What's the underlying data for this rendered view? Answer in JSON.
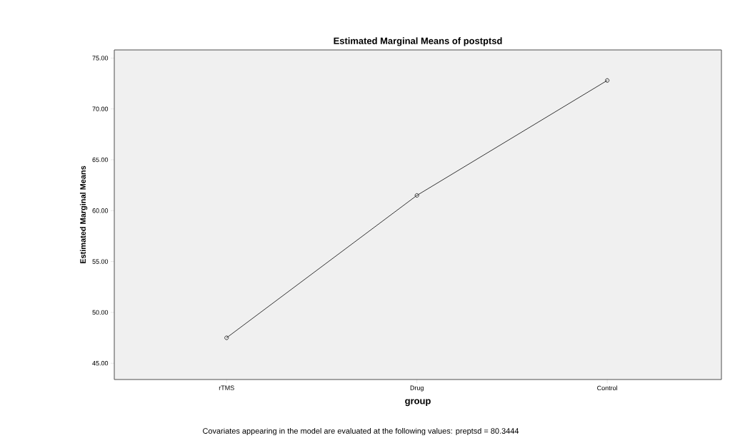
{
  "chart_data": {
    "type": "line",
    "title": "Estimated Marginal Means of postptsd",
    "xlabel": "group",
    "ylabel": "Estimated Marginal Means",
    "categories": [
      "rTMS",
      "Drug",
      "Control"
    ],
    "values": [
      47.5,
      61.5,
      72.8
    ],
    "color": "#333333",
    "marker": "circle",
    "line_style": "solid",
    "ylim": [
      43.4,
      75.8
    ],
    "yticks": [
      {
        "value": 45,
        "label": "45.00"
      },
      {
        "value": 50,
        "label": "50.00"
      },
      {
        "value": 55,
        "label": "55.00"
      },
      {
        "value": 60,
        "label": "60.00"
      },
      {
        "value": 65,
        "label": "65.00"
      },
      {
        "value": 70,
        "label": "70.00"
      },
      {
        "value": 75,
        "label": "75.00"
      }
    ],
    "annotations": [
      "Covariates appearing in the model are evaluated at the following values: preptsd = 80.3444"
    ]
  }
}
